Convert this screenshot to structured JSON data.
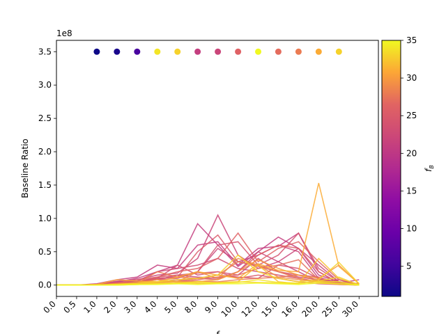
{
  "chart_data": {
    "type": "line",
    "title": "",
    "xlabel": "f",
    "ylabel": "Baseline Ratio",
    "y_offset_label": "1e8",
    "x_categories": [
      "0.0",
      "0.5",
      "1.0",
      "2.0",
      "3.0",
      "4.0",
      "5.0",
      "8.0",
      "9.0",
      "10.0",
      "12.0",
      "15.0",
      "16.0",
      "20.0",
      "25.0",
      "30.0"
    ],
    "y_ticks": [
      0.0,
      0.5,
      1.0,
      1.5,
      2.0,
      2.5,
      3.0,
      3.5
    ],
    "ylim": [
      -0.17,
      3.67
    ],
    "grid": false,
    "colormap": "plasma",
    "colorbar": {
      "label": "f_B",
      "min": 1,
      "max": 35,
      "ticks": [
        5,
        10,
        15,
        20,
        25,
        30,
        35
      ]
    },
    "markers": {
      "y": 3.5,
      "x": [
        "1.0",
        "2.0",
        "3.0",
        "4.0",
        "5.0",
        "8.0",
        "9.0",
        "10.0",
        "12.0",
        "15.0",
        "16.0",
        "20.0",
        "25.0"
      ],
      "f_B": [
        1,
        2,
        6,
        34,
        33,
        21,
        22,
        26,
        35,
        27,
        28,
        31,
        33
      ]
    },
    "series": [
      {
        "f_B": 21,
        "values": [
          0,
          0,
          0.01,
          0.05,
          0.1,
          0.2,
          0.3,
          0.92,
          0.6,
          0.28,
          0.5,
          0.72,
          0.55,
          0.15,
          0.05,
          0.02
        ]
      },
      {
        "f_B": 21,
        "values": [
          0,
          0,
          0.02,
          0.08,
          0.12,
          0.3,
          0.25,
          0.6,
          0.65,
          0.3,
          0.55,
          0.58,
          0.78,
          0.2,
          0.03,
          0.08
        ]
      },
      {
        "f_B": 22,
        "values": [
          0,
          0,
          0.01,
          0.06,
          0.08,
          0.15,
          0.18,
          0.4,
          1.05,
          0.45,
          0.25,
          0.35,
          0.55,
          0.3,
          0.05,
          0.02
        ]
      },
      {
        "f_B": 22,
        "values": [
          0,
          0,
          0.01,
          0.04,
          0.06,
          0.1,
          0.12,
          0.2,
          0.55,
          0.35,
          0.45,
          0.6,
          0.5,
          0.1,
          0.02,
          0.01
        ]
      },
      {
        "f_B": 22,
        "values": [
          0,
          0,
          0.01,
          0.03,
          0.05,
          0.08,
          0.15,
          0.12,
          0.1,
          0.2,
          0.5,
          0.35,
          0.2,
          0.05,
          0.08,
          0.01
        ]
      },
      {
        "f_B": 23,
        "values": [
          0,
          0,
          0.01,
          0.03,
          0.06,
          0.2,
          0.25,
          0.3,
          0.4,
          0.25,
          0.2,
          0.15,
          0.1,
          0.05,
          0.02,
          0.0
        ]
      },
      {
        "f_B": 23,
        "values": [
          0,
          0,
          0.01,
          0.05,
          0.05,
          0.1,
          0.3,
          0.15,
          0.2,
          0.15,
          0.4,
          0.2,
          0.12,
          0.08,
          0.03,
          0.01
        ]
      },
      {
        "f_B": 24,
        "values": [
          0,
          0,
          0.01,
          0.02,
          0.04,
          0.08,
          0.1,
          0.2,
          0.6,
          0.65,
          0.3,
          0.45,
          0.78,
          0.25,
          0.05,
          0.01
        ]
      },
      {
        "f_B": 24,
        "values": [
          0,
          0,
          0.0,
          0.02,
          0.03,
          0.05,
          0.08,
          0.1,
          0.15,
          0.12,
          0.1,
          0.3,
          0.25,
          0.1,
          0.02,
          0.0
        ]
      },
      {
        "f_B": 25,
        "values": [
          0,
          0,
          0.01,
          0.02,
          0.05,
          0.12,
          0.15,
          0.18,
          0.2,
          0.1,
          0.15,
          0.1,
          0.05,
          0.02,
          0.01,
          0.0
        ]
      },
      {
        "f_B": 25,
        "values": [
          0,
          0,
          0.01,
          0.02,
          0.04,
          0.1,
          0.12,
          0.5,
          0.75,
          0.35,
          0.28,
          0.2,
          0.15,
          0.12,
          0.03,
          0.01
        ]
      },
      {
        "f_B": 26,
        "values": [
          0,
          0,
          0.01,
          0.03,
          0.08,
          0.12,
          0.2,
          0.25,
          0.4,
          0.78,
          0.35,
          0.55,
          0.65,
          0.35,
          0.08,
          0.01
        ]
      },
      {
        "f_B": 26,
        "values": [
          0,
          0,
          0.01,
          0.02,
          0.02,
          0.05,
          0.06,
          0.1,
          0.08,
          0.2,
          0.45,
          0.6,
          0.55,
          0.2,
          0.03,
          0.0
        ]
      },
      {
        "f_B": 27,
        "values": [
          0,
          0,
          0.01,
          0.03,
          0.04,
          0.05,
          0.05,
          0.08,
          0.12,
          0.15,
          0.25,
          0.3,
          0.38,
          0.08,
          0.02,
          0.0
        ]
      },
      {
        "f_B": 28,
        "values": [
          0,
          0,
          0.0,
          0.02,
          0.03,
          0.2,
          0.12,
          0.1,
          0.15,
          0.35,
          0.3,
          0.2,
          0.1,
          0.05,
          0.02,
          0.0
        ]
      },
      {
        "f_B": 28,
        "values": [
          0,
          0,
          0.0,
          0.01,
          0.02,
          0.04,
          0.05,
          0.06,
          0.05,
          0.08,
          0.1,
          0.12,
          0.15,
          0.06,
          0.02,
          0.0
        ]
      },
      {
        "f_B": 29,
        "values": [
          0,
          0,
          0.0,
          0.01,
          0.02,
          0.03,
          0.05,
          0.2,
          0.1,
          0.4,
          0.3,
          0.12,
          0.08,
          0.04,
          0.01,
          0.0
        ]
      },
      {
        "f_B": 30,
        "values": [
          0,
          0,
          0.0,
          0.02,
          0.03,
          0.08,
          0.04,
          0.05,
          0.08,
          0.2,
          0.38,
          0.25,
          0.15,
          0.1,
          0.3,
          0.02
        ]
      },
      {
        "f_B": 31,
        "values": [
          0,
          0,
          0.01,
          0.08,
          0.06,
          0.05,
          0.12,
          0.2,
          0.15,
          0.1,
          0.32,
          0.22,
          0.2,
          1.53,
          0.28,
          0.02
        ]
      },
      {
        "f_B": 32,
        "values": [
          0,
          0,
          0.0,
          0.01,
          0.02,
          0.04,
          0.05,
          0.03,
          0.04,
          0.05,
          0.3,
          0.05,
          0.02,
          0.4,
          0.1,
          0.01
        ]
      },
      {
        "f_B": 33,
        "values": [
          0,
          0,
          0.0,
          0.01,
          0.03,
          0.05,
          0.08,
          0.1,
          0.15,
          0.45,
          0.2,
          0.1,
          0.05,
          0.08,
          0.34,
          0.02
        ]
      },
      {
        "f_B": 33,
        "values": [
          0,
          0,
          0.0,
          0.0,
          0.01,
          0.02,
          0.03,
          0.02,
          0.03,
          0.05,
          0.04,
          0.03,
          0.02,
          0.06,
          0.12,
          0.0
        ]
      },
      {
        "f_B": 34,
        "values": [
          0,
          0,
          0.0,
          0.01,
          0.01,
          0.02,
          0.02,
          0.05,
          0.03,
          0.04,
          0.08,
          0.04,
          0.03,
          0.05,
          0.05,
          0.0
        ]
      },
      {
        "f_B": 35,
        "values": [
          0,
          0,
          0.0,
          0.0,
          0.01,
          0.01,
          0.02,
          0.01,
          0.02,
          0.02,
          0.03,
          0.02,
          0.01,
          0.03,
          0.02,
          0.0
        ]
      }
    ]
  }
}
